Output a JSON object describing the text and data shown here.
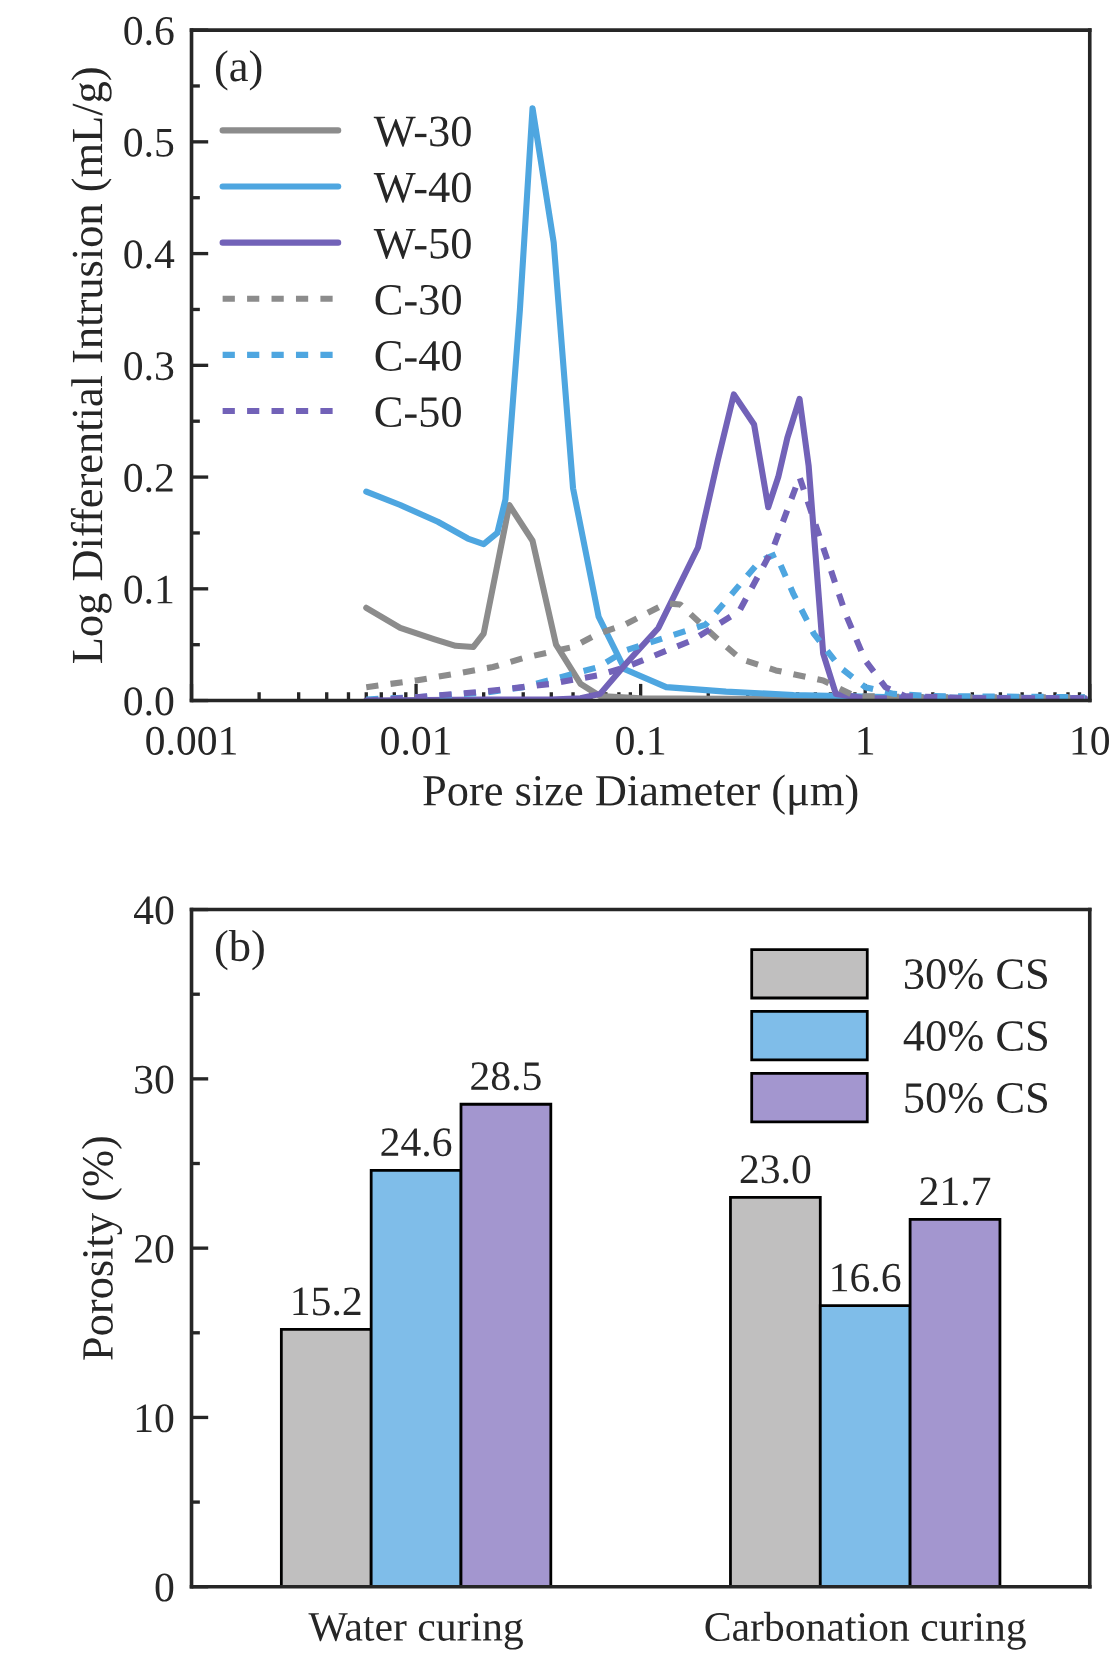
{
  "chart_data": [
    {
      "type": "line",
      "title": "(a)",
      "xlabel": "Pore size Diameter (μm)",
      "ylabel": "Log Differential Intrusion (mL/g)",
      "log": "x",
      "xlim": [
        0.001,
        10
      ],
      "xticks": [
        {
          "value": 0.001,
          "label": "0.001"
        },
        {
          "value": 0.01,
          "label": "0.01"
        },
        {
          "value": 0.1,
          "label": "0.1"
        },
        {
          "value": 1,
          "label": "1"
        },
        {
          "value": 10,
          "label": "10"
        }
      ],
      "ylim": [
        0,
        0.6
      ],
      "yticks": [
        {
          "value": 0,
          "label": "0.0"
        },
        {
          "value": 0.1,
          "label": "0.1"
        },
        {
          "value": 0.2,
          "label": "0.2"
        },
        {
          "value": 0.3,
          "label": "0.3"
        },
        {
          "value": 0.4,
          "label": "0.4"
        },
        {
          "value": 0.5,
          "label": "0.5"
        },
        {
          "value": 0.6,
          "label": "0.6"
        }
      ],
      "legend": "top left",
      "grid": false,
      "series": [
        {
          "name": "W-30",
          "color": "#8c8c8c",
          "line_style": "solid",
          "x": [
            0.006,
            0.0085,
            0.012,
            0.015,
            0.018,
            0.02,
            0.026,
            0.033,
            0.042,
            0.054,
            0.066,
            0.1,
            1,
            9.5
          ],
          "values": [
            0.083,
            0.065,
            0.055,
            0.049,
            0.048,
            0.06,
            0.175,
            0.143,
            0.05,
            0.015,
            0.004,
            0.002,
            0.001,
            0.001
          ]
        },
        {
          "name": "W-40",
          "color": "#4ea6e0",
          "line_style": "solid",
          "x": [
            0.006,
            0.0085,
            0.0125,
            0.017,
            0.02,
            0.023,
            0.025,
            0.029,
            0.033,
            0.041,
            0.05,
            0.065,
            0.085,
            0.13,
            0.24,
            0.48,
            1.4,
            9.5
          ],
          "values": [
            0.187,
            0.175,
            0.16,
            0.145,
            0.14,
            0.15,
            0.18,
            0.35,
            0.53,
            0.41,
            0.19,
            0.075,
            0.028,
            0.012,
            0.008,
            0.005,
            0.003,
            0.002
          ]
        },
        {
          "name": "W-50",
          "color": "#7262b8",
          "line_style": "solid",
          "x": [
            0.006,
            0.02,
            0.04,
            0.054,
            0.066,
            0.086,
            0.12,
            0.18,
            0.22,
            0.26,
            0.32,
            0.37,
            0.41,
            0.45,
            0.51,
            0.56,
            0.65,
            0.74,
            1,
            9.5
          ],
          "values": [
            0.0,
            0.001,
            0.001,
            0.002,
            0.006,
            0.033,
            0.065,
            0.137,
            0.214,
            0.274,
            0.247,
            0.173,
            0.2,
            0.235,
            0.27,
            0.21,
            0.042,
            0.006,
            0.002,
            0.002
          ]
        },
        {
          "name": "C-30",
          "color": "#8c8c8c",
          "line_style": "dotted",
          "x": [
            0.006,
            0.01,
            0.015,
            0.022,
            0.03,
            0.05,
            0.065,
            0.085,
            0.13,
            0.15,
            0.22,
            0.28,
            0.4,
            0.65,
            0.9,
            2,
            9.5
          ],
          "values": [
            0.012,
            0.018,
            0.024,
            0.03,
            0.038,
            0.048,
            0.06,
            0.068,
            0.087,
            0.086,
            0.055,
            0.037,
            0.027,
            0.018,
            0.004,
            0.003,
            0.003
          ]
        },
        {
          "name": "C-40",
          "color": "#4ea6e0",
          "line_style": "dotted",
          "x": [
            0.006,
            0.01,
            0.02,
            0.03,
            0.065,
            0.086,
            0.195,
            0.34,
            0.4,
            0.48,
            0.59,
            0.77,
            1,
            1.34,
            2,
            9.5
          ],
          "values": [
            0.001,
            0.003,
            0.007,
            0.012,
            0.03,
            0.045,
            0.068,
            0.125,
            0.131,
            0.095,
            0.06,
            0.03,
            0.012,
            0.006,
            0.004,
            0.003
          ]
        },
        {
          "name": "C-50",
          "color": "#7262b8",
          "line_style": "dotted",
          "x": [
            0.006,
            0.01,
            0.02,
            0.04,
            0.066,
            0.086,
            0.17,
            0.275,
            0.39,
            0.51,
            0.65,
            0.82,
            1,
            1.23,
            1.5,
            3,
            9.5
          ],
          "values": [
            0.0,
            0.003,
            0.008,
            0.015,
            0.023,
            0.03,
            0.054,
            0.08,
            0.137,
            0.2,
            0.137,
            0.077,
            0.036,
            0.012,
            0.004,
            0.002,
            0.002
          ]
        }
      ]
    },
    {
      "type": "bar",
      "title": "(b)",
      "ylabel": "Porosity (%)",
      "categories": [
        "Water curing",
        "Carbonation curing"
      ],
      "ylim": [
        0,
        40
      ],
      "yticks": [
        0,
        10,
        20,
        30,
        40
      ],
      "legend": "top right",
      "grid": false,
      "data_labels": true,
      "series": [
        {
          "name": "30% CS",
          "color": "#c0bfbf",
          "values": [
            15.2,
            23.0
          ],
          "value_labels": [
            "15.2",
            "23.0"
          ]
        },
        {
          "name": "40% CS",
          "color": "#7fbde9",
          "values": [
            24.6,
            16.6
          ],
          "value_labels": [
            "24.6",
            "16.6"
          ]
        },
        {
          "name": "50% CS",
          "color": "#a396cf",
          "values": [
            28.5,
            21.7
          ],
          "value_labels": [
            "28.5",
            "21.7"
          ]
        }
      ]
    }
  ]
}
